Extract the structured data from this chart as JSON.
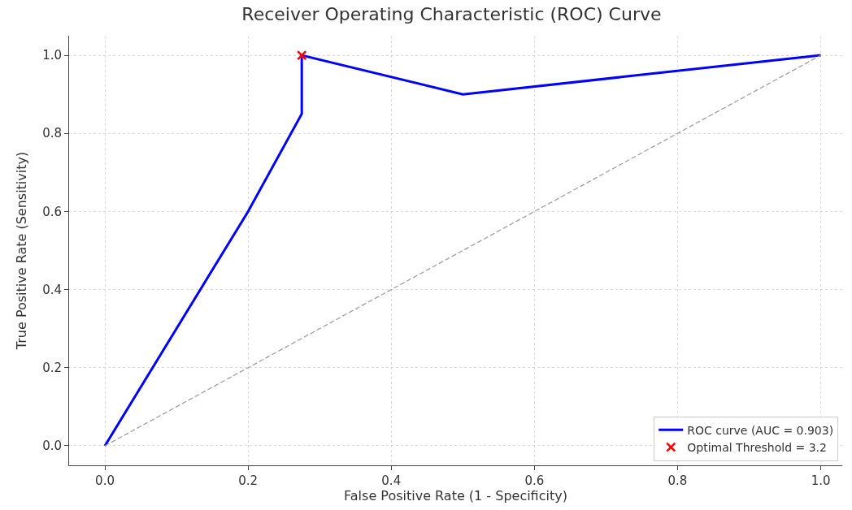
{
  "chart_data": {
    "type": "line",
    "title": "Receiver Operating Characteristic (ROC) Curve",
    "xlabel": "False Positive Rate (1 - Specificity)",
    "ylabel": "True Positive Rate (Sensitivity)",
    "series": [
      {
        "name": "ROC curve (AUC = 0.903)",
        "color": "#0000ff",
        "x": [
          0,
          0.2,
          0.275,
          0.275,
          0.5,
          1.0
        ],
        "values": [
          0,
          0.6,
          0.85,
          1.0,
          0.9,
          1.0
        ]
      },
      {
        "type": "line",
        "color": "#999999",
        "line_style": "dashed",
        "x": [
          0,
          1
        ],
        "values": [
          0,
          1
        ]
      },
      {
        "type": "scatter",
        "name": "Optimal Threshold = 3.2",
        "color": "#ff0000",
        "marker": "cross",
        "x": [
          0.275
        ],
        "values": [
          1.0
        ]
      }
    ],
    "xlim": [
      -0.05,
      1.03
    ],
    "ylim": [
      -0.05,
      1.05
    ],
    "xticks": [
      {
        "value": 0,
        "label": "0.0"
      },
      0.2,
      0.4,
      0.6,
      0.8,
      {
        "value": 1,
        "label": "1.0"
      }
    ],
    "yticks": [
      {
        "value": 0,
        "label": "0.0"
      },
      0.2,
      0.4,
      0.6,
      0.8,
      {
        "value": 1,
        "label": "1.0"
      }
    ],
    "grid": true,
    "legend": "bottom right"
  }
}
